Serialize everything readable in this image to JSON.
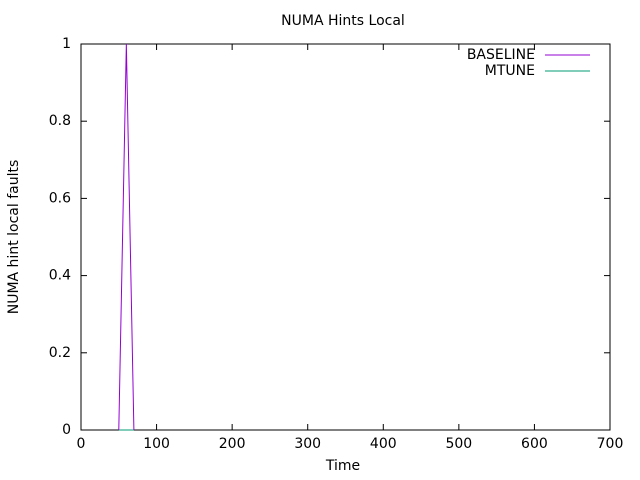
{
  "chart_data": {
    "type": "line",
    "title": "NUMA Hints Local",
    "x_label": "Time",
    "y_label": "NUMA hint local faults",
    "x": [
      50,
      60,
      70
    ],
    "series": [
      {
        "name": "BASELINE",
        "color": "#9400d3",
        "values": [
          0,
          1,
          0
        ]
      },
      {
        "name": "MTUNE",
        "color": "#009e73",
        "values": [
          0,
          0,
          0
        ]
      }
    ],
    "xlim": [
      0,
      700
    ],
    "xticks": [
      0,
      100,
      200,
      300,
      400,
      500,
      600,
      700
    ],
    "ylim": [
      0,
      1
    ],
    "yticks": [
      0,
      0.2,
      0.4,
      0.6,
      0.8,
      1
    ],
    "legend": "top-right"
  }
}
